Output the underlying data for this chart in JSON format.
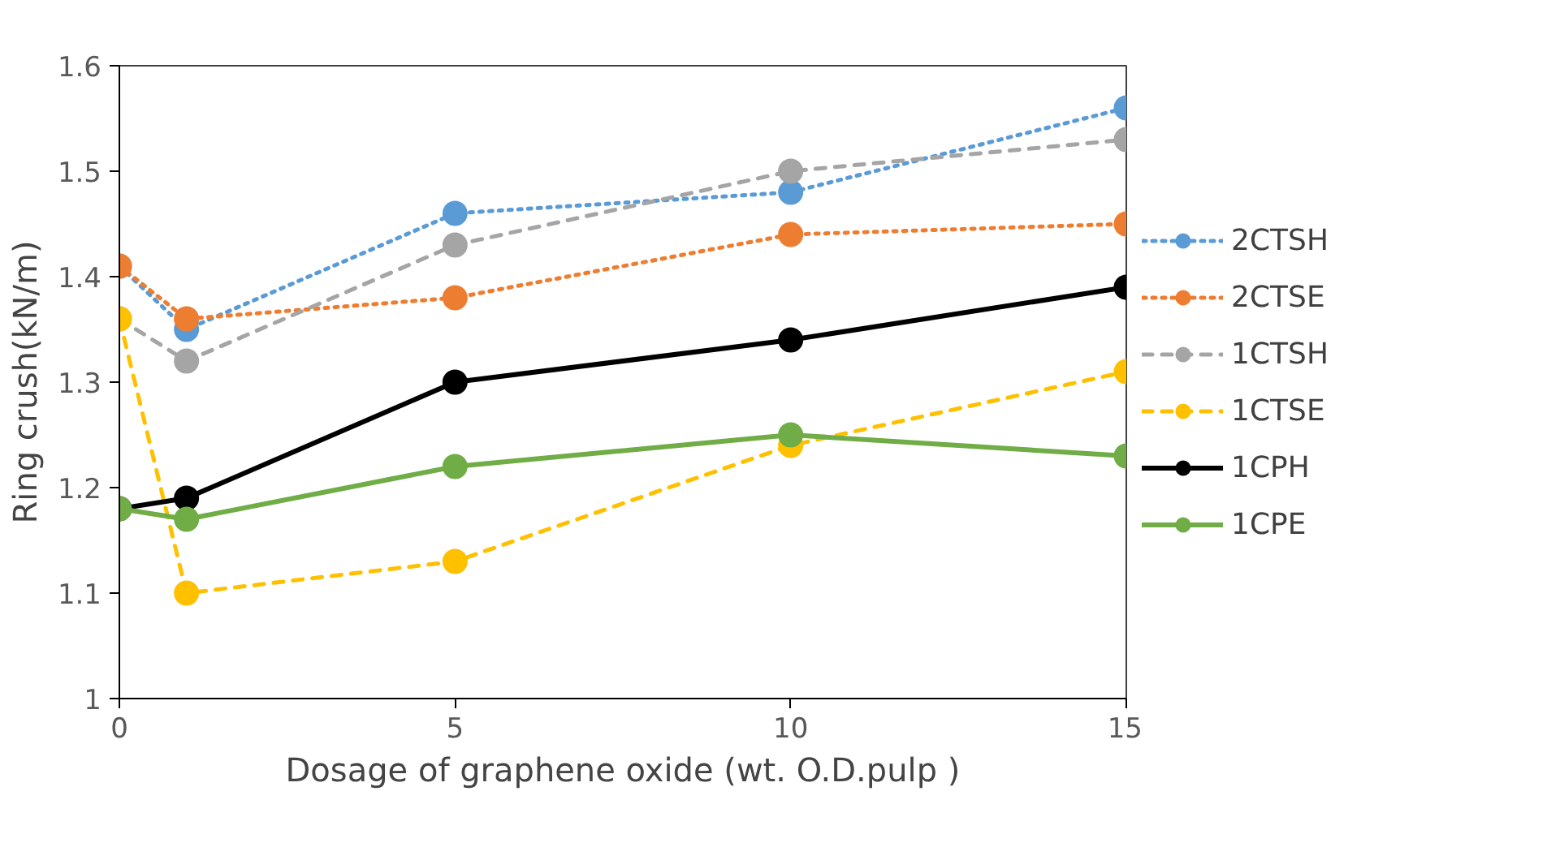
{
  "chart_data": {
    "type": "line",
    "xlabel": "Dosage of graphene oxide (wt. O.D.pulp )",
    "ylabel": "Ring crush(kN/m)",
    "x": [
      0,
      1,
      5,
      10,
      15
    ],
    "xlim": [
      0,
      15
    ],
    "xticks": [
      0,
      5,
      10,
      15
    ],
    "ylim": [
      1,
      1.6
    ],
    "yticks": [
      1,
      1.1,
      1.2,
      1.3,
      1.4,
      1.5,
      1.6
    ],
    "grid": false,
    "legend": "right",
    "marker": "circle",
    "series": [
      {
        "name": "2CTSH",
        "color": "#5b9bd5",
        "line_style": "dotted",
        "values": [
          1.41,
          1.35,
          1.46,
          1.48,
          1.56
        ]
      },
      {
        "name": "2CTSE",
        "color": "#ed7d31",
        "line_style": "dotted",
        "values": [
          1.41,
          1.36,
          1.38,
          1.44,
          1.45
        ]
      },
      {
        "name": "1CTSH",
        "color": "#a5a5a5",
        "line_style": "dashed",
        "values": [
          1.36,
          1.32,
          1.43,
          1.5,
          1.53
        ]
      },
      {
        "name": "1CTSE",
        "color": "#ffc000",
        "line_style": "dashed",
        "values": [
          1.36,
          1.1,
          1.13,
          1.24,
          1.31
        ]
      },
      {
        "name": "1CPH",
        "color": "#000000",
        "line_style": "solid",
        "values": [
          1.18,
          1.19,
          1.3,
          1.34,
          1.39
        ]
      },
      {
        "name": "1CPE",
        "color": "#70ad47",
        "line_style": "solid",
        "values": [
          1.18,
          1.17,
          1.22,
          1.25,
          1.23
        ]
      }
    ]
  }
}
